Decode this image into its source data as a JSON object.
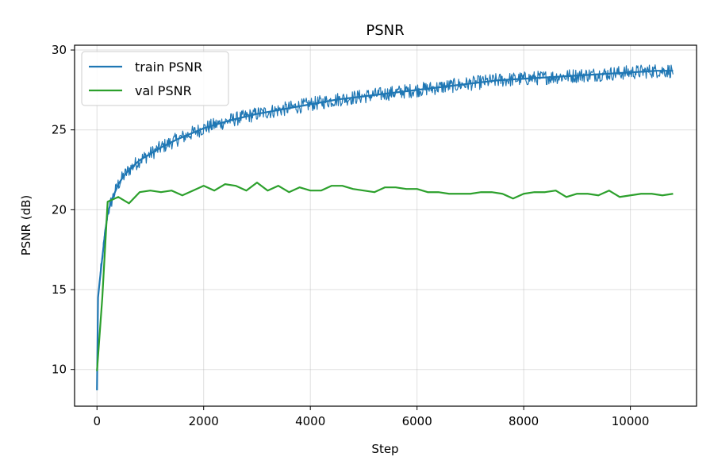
{
  "chart_data": {
    "type": "line",
    "title": "PSNR",
    "xlabel": "Step",
    "ylabel": "PSNR (dB)",
    "xlim": [
      -420,
      11240
    ],
    "ylim": [
      7.7,
      30.3
    ],
    "x_ticks": [
      0,
      2000,
      4000,
      6000,
      8000,
      10000
    ],
    "x_tick_labels": [
      "0",
      "2000",
      "4000",
      "6000",
      "8000",
      "10000"
    ],
    "y_ticks": [
      10,
      15,
      20,
      25,
      30
    ],
    "y_tick_labels": [
      "10",
      "15",
      "20",
      "25",
      "30"
    ],
    "grid": true,
    "legend": {
      "placement": "top-left"
    },
    "series": [
      {
        "name": "train PSNR",
        "color": "#1f77b4",
        "noise_amplitude": 0.45,
        "x": [
          0,
          20,
          50,
          100,
          150,
          200,
          250,
          300,
          400,
          500,
          600,
          800,
          1000,
          1200,
          1500,
          2000,
          2500,
          3000,
          3500,
          4000,
          4500,
          5000,
          5500,
          6000,
          6500,
          7000,
          7500,
          8000,
          8500,
          9000,
          9500,
          10000,
          10500,
          10800
        ],
        "y": [
          8.7,
          14.5,
          15.5,
          17.0,
          18.5,
          19.8,
          20.3,
          20.8,
          21.6,
          22.1,
          22.5,
          23.1,
          23.5,
          23.9,
          24.4,
          25.1,
          25.6,
          26.0,
          26.3,
          26.6,
          26.9,
          27.1,
          27.3,
          27.5,
          27.7,
          27.9,
          28.1,
          28.2,
          28.3,
          28.4,
          28.5,
          28.6,
          28.7,
          28.7
        ]
      },
      {
        "name": "val PSNR",
        "color": "#2ca02c",
        "x": [
          0,
          100,
          200,
          400,
          600,
          800,
          1000,
          1200,
          1400,
          1600,
          1800,
          2000,
          2200,
          2400,
          2600,
          2800,
          3000,
          3200,
          3400,
          3600,
          3800,
          4000,
          4200,
          4400,
          4600,
          4800,
          5000,
          5200,
          5400,
          5600,
          5800,
          6000,
          6200,
          6400,
          6600,
          6800,
          7000,
          7200,
          7400,
          7600,
          7800,
          8000,
          8200,
          8400,
          8600,
          8800,
          9000,
          9200,
          9400,
          9600,
          9800,
          10000,
          10200,
          10400,
          10600,
          10800
        ],
        "y": [
          9.9,
          14.5,
          20.5,
          20.8,
          20.4,
          21.1,
          21.2,
          21.1,
          21.2,
          20.9,
          21.2,
          21.5,
          21.2,
          21.6,
          21.5,
          21.2,
          21.7,
          21.2,
          21.5,
          21.1,
          21.4,
          21.2,
          21.2,
          21.5,
          21.5,
          21.3,
          21.2,
          21.1,
          21.4,
          21.4,
          21.3,
          21.3,
          21.1,
          21.1,
          21.0,
          21.0,
          21.0,
          21.1,
          21.1,
          21.0,
          20.7,
          21.0,
          21.1,
          21.1,
          21.2,
          20.8,
          21.0,
          21.0,
          20.9,
          21.2,
          20.8,
          20.9,
          21.0,
          21.0,
          20.9,
          21.0
        ]
      }
    ]
  }
}
